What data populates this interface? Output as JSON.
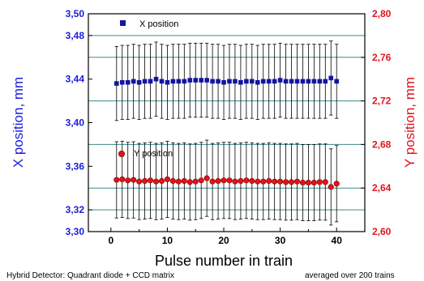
{
  "chart_data": {
    "type": "scatter",
    "x_axis": {
      "label": "Pulse number in train",
      "range": [
        -4,
        45
      ],
      "ticks": [
        0,
        10,
        20,
        30,
        40
      ],
      "tick_labels": [
        "0",
        "10",
        "20",
        "30",
        "40"
      ]
    },
    "y_axis_left": {
      "label": "X position, mm",
      "range": [
        3.3,
        3.5
      ],
      "ticks": [
        3.3,
        3.32,
        3.36,
        3.4,
        3.44,
        3.48,
        3.5
      ],
      "tick_labels": [
        "3,30",
        "3,32",
        "3,36",
        "3,40",
        "3,44",
        "3,48",
        "3,50"
      ],
      "color": "#1c1cdc"
    },
    "y_axis_right": {
      "label": "Y position, mm",
      "range": [
        2.6,
        2.8
      ],
      "ticks": [
        2.6,
        2.64,
        2.68,
        2.72,
        2.76,
        2.8
      ],
      "tick_labels": [
        "2,60",
        "2,64",
        "2,68",
        "2,72",
        "2,76",
        "2,80"
      ],
      "color": "#e0141e"
    },
    "grid_lines": [
      3.32,
      3.34,
      3.38,
      3.42,
      3.46,
      3.48
    ],
    "grid_color": "#3a8a8a",
    "x": [
      1,
      2,
      3,
      4,
      5,
      6,
      7,
      8,
      9,
      10,
      11,
      12,
      13,
      14,
      15,
      16,
      17,
      18,
      19,
      20,
      21,
      22,
      23,
      24,
      25,
      26,
      27,
      28,
      29,
      30,
      31,
      32,
      33,
      34,
      35,
      36,
      37,
      38,
      39,
      40
    ],
    "series": [
      {
        "name": "X position",
        "axis": "left",
        "marker": "square",
        "color": "#1414a0",
        "values": [
          3.436,
          3.437,
          3.437,
          3.438,
          3.437,
          3.438,
          3.438,
          3.44,
          3.438,
          3.437,
          3.438,
          3.438,
          3.438,
          3.439,
          3.439,
          3.439,
          3.439,
          3.438,
          3.438,
          3.437,
          3.438,
          3.438,
          3.437,
          3.438,
          3.438,
          3.437,
          3.438,
          3.438,
          3.438,
          3.439,
          3.438,
          3.438,
          3.438,
          3.438,
          3.438,
          3.438,
          3.438,
          3.438,
          3.441,
          3.438
        ],
        "error": [
          0.034,
          0.034,
          0.034,
          0.034,
          0.034,
          0.034,
          0.034,
          0.034,
          0.034,
          0.034,
          0.034,
          0.034,
          0.034,
          0.034,
          0.034,
          0.034,
          0.034,
          0.034,
          0.034,
          0.034,
          0.034,
          0.034,
          0.034,
          0.034,
          0.034,
          0.034,
          0.034,
          0.034,
          0.034,
          0.034,
          0.034,
          0.034,
          0.034,
          0.034,
          0.034,
          0.034,
          0.034,
          0.034,
          0.034,
          0.034
        ]
      },
      {
        "name": "Y position",
        "axis": "right",
        "marker": "circle",
        "color": "#e0141e",
        "values": [
          2.6475,
          2.648,
          2.647,
          2.6475,
          2.646,
          2.6465,
          2.647,
          2.646,
          2.6465,
          2.648,
          2.6465,
          2.646,
          2.6465,
          2.6455,
          2.646,
          2.647,
          2.649,
          2.646,
          2.6465,
          2.647,
          2.647,
          2.646,
          2.6465,
          2.647,
          2.6465,
          2.646,
          2.646,
          2.6465,
          2.646,
          2.646,
          2.6455,
          2.6455,
          2.646,
          2.645,
          2.645,
          2.645,
          2.6455,
          2.6455,
          2.641,
          2.644
        ],
        "error": [
          0.035,
          0.035,
          0.035,
          0.035,
          0.035,
          0.035,
          0.035,
          0.035,
          0.035,
          0.035,
          0.035,
          0.035,
          0.035,
          0.035,
          0.035,
          0.035,
          0.035,
          0.035,
          0.035,
          0.035,
          0.035,
          0.035,
          0.035,
          0.035,
          0.035,
          0.035,
          0.035,
          0.035,
          0.035,
          0.035,
          0.035,
          0.035,
          0.035,
          0.035,
          0.035,
          0.035,
          0.035,
          0.035,
          0.035,
          0.035
        ]
      }
    ],
    "legend": [
      {
        "label": "X position",
        "marker": "square",
        "position": "upper-center"
      },
      {
        "label": "Y position",
        "marker": "circle",
        "position": "middle-center"
      }
    ]
  },
  "footnotes": {
    "left": "Hybrid Detector: Quadrant diode + CCD matrix",
    "right": "averaged over 200 trains"
  }
}
